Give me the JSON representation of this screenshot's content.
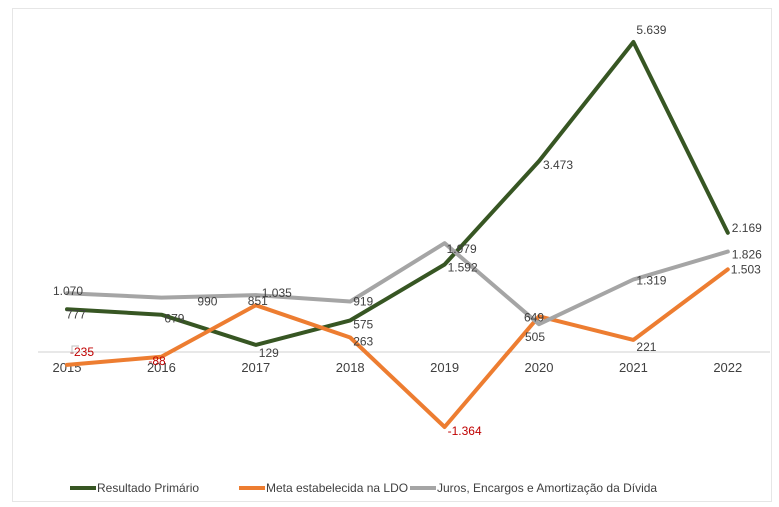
{
  "chart_data": {
    "type": "line",
    "title": "",
    "xlabel": "",
    "ylabel": "",
    "x": [
      "2015",
      "2016",
      "2017",
      "2018",
      "2019",
      "2020",
      "2021",
      "2022"
    ],
    "ylim": [
      -2000,
      6000
    ],
    "grid": false,
    "legend_position": "bottom",
    "series": [
      {
        "name": "Resultado Primário",
        "color": "#375623",
        "values": [
          777,
          679,
          129,
          575,
          1592,
          3473,
          5639,
          2169
        ],
        "labels": [
          "777",
          "679",
          "129",
          "575",
          "1.592",
          "3.473",
          "5.639",
          "2.169"
        ]
      },
      {
        "name": "Meta estabelecida na LDO",
        "color": "#ed7d31",
        "values": [
          -235,
          -88,
          851,
          263,
          -1364,
          649,
          221,
          1503
        ],
        "labels": [
          "-235",
          "-88",
          "851",
          "263",
          "-1.364",
          "649",
          "221",
          "1.503"
        ]
      },
      {
        "name": "Juros, Encargos e Amortização da Dívida",
        "color": "#a5a5a5",
        "values": [
          1070,
          990,
          1035,
          919,
          1979,
          505,
          1319,
          1826
        ],
        "labels": [
          "1.070",
          "990",
          "1.035",
          "919",
          "1.979",
          "505",
          "1.319",
          "1.826"
        ]
      }
    ],
    "negative_label_color": "#c00000",
    "label_color": "#404040"
  }
}
